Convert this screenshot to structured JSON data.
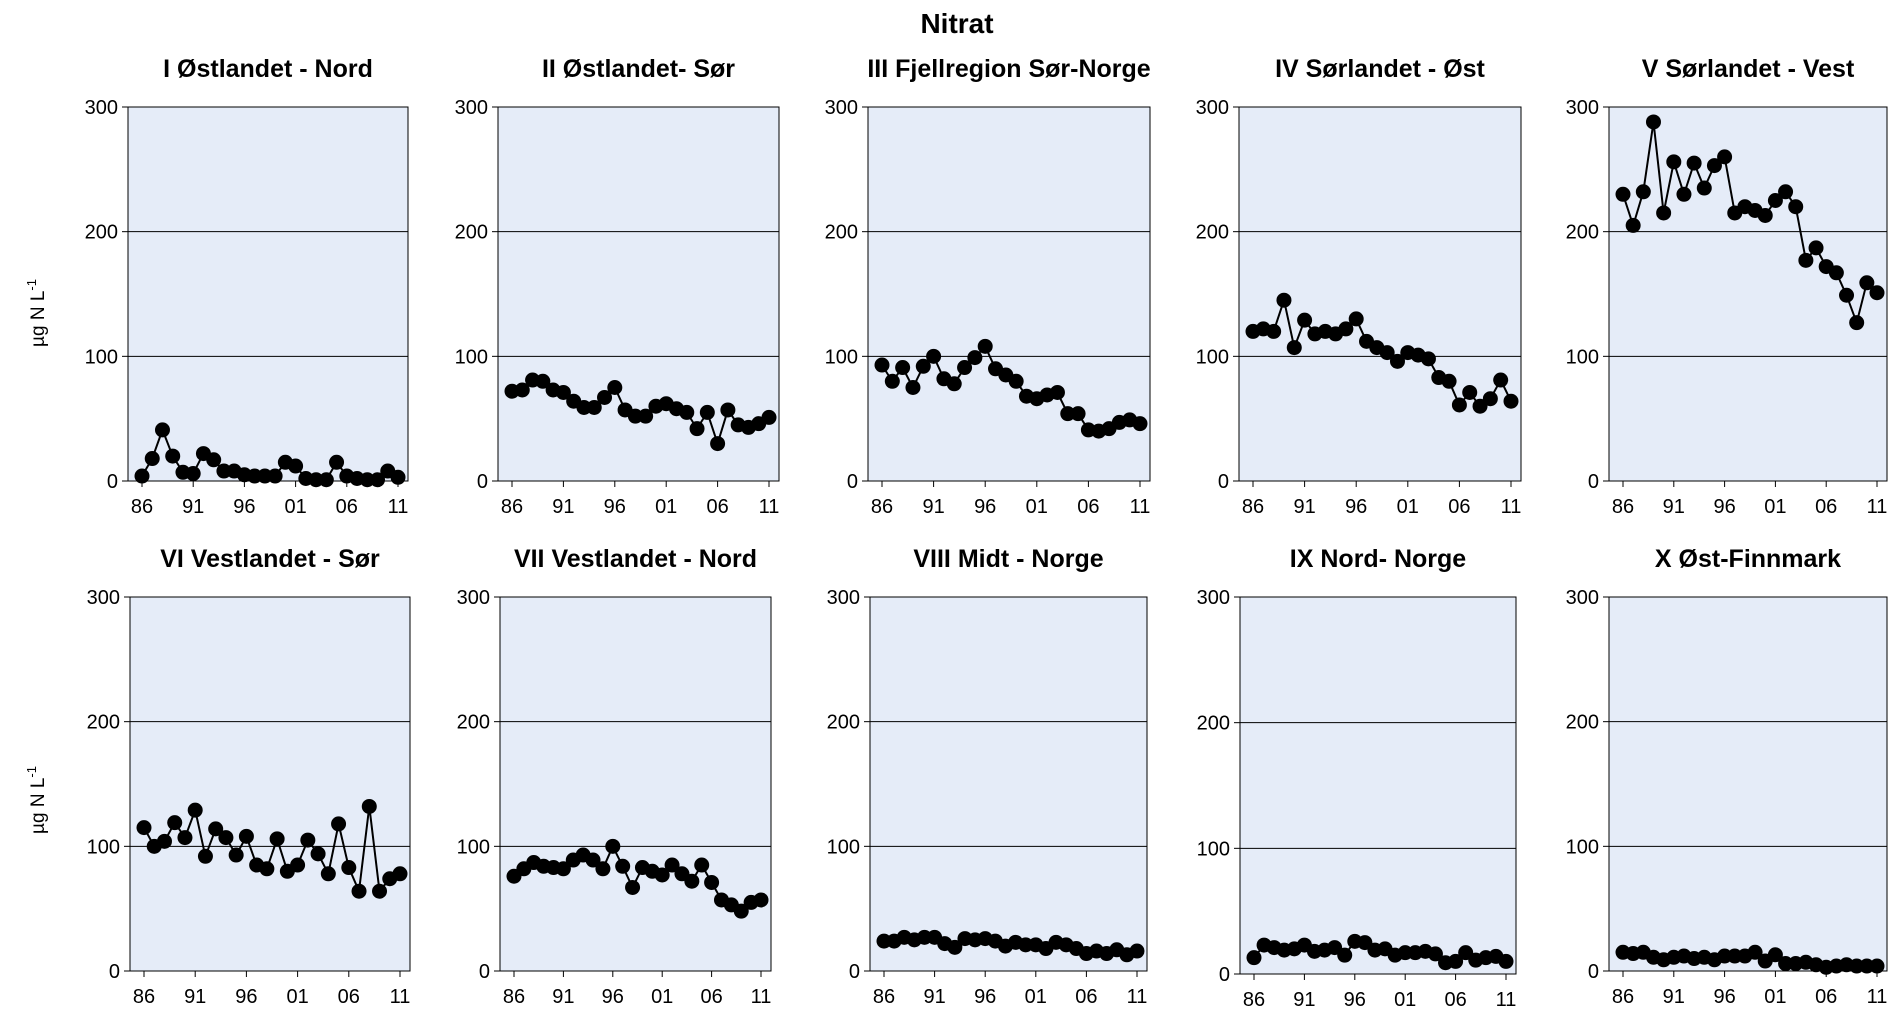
{
  "title": "Nitrat",
  "ylabel": {
    "base": "µg N L",
    "superscript": "-1"
  },
  "chart_data": [
    {
      "type": "line",
      "title": "I Østlandet - Nord",
      "ylim": [
        0,
        300
      ],
      "yticks": [
        0,
        100,
        200,
        300
      ],
      "xticks": [
        "86",
        "91",
        "96",
        "01",
        "06",
        "11"
      ],
      "x": [
        1986,
        1987,
        1988,
        1989,
        1990,
        1991,
        1992,
        1993,
        1994,
        1995,
        1996,
        1997,
        1998,
        1999,
        2000,
        2001,
        2002,
        2003,
        2004,
        2005,
        2006,
        2007,
        2008,
        2009,
        2010,
        2011
      ],
      "values": [
        4,
        18,
        41,
        20,
        7,
        6,
        22,
        17,
        8,
        8,
        5,
        4,
        4,
        4,
        15,
        12,
        2,
        1,
        1,
        15,
        4,
        2,
        1,
        1,
        8,
        3
      ]
    },
    {
      "type": "line",
      "title": "II Østlandet- Sør",
      "ylim": [
        0,
        300
      ],
      "yticks": [
        0,
        100,
        200,
        300
      ],
      "xticks": [
        "86",
        "91",
        "96",
        "01",
        "06",
        "11"
      ],
      "x": [
        1986,
        1987,
        1988,
        1989,
        1990,
        1991,
        1992,
        1993,
        1994,
        1995,
        1996,
        1997,
        1998,
        1999,
        2000,
        2001,
        2002,
        2003,
        2004,
        2005,
        2006,
        2007,
        2008,
        2009,
        2010,
        2011
      ],
      "values": [
        72,
        73,
        81,
        80,
        73,
        71,
        64,
        59,
        59,
        67,
        75,
        57,
        52,
        52,
        60,
        62,
        58,
        55,
        42,
        55,
        30,
        57,
        45,
        43,
        46,
        51
      ]
    },
    {
      "type": "line",
      "title": "III Fjellregion Sør-Norge",
      "ylim": [
        0,
        300
      ],
      "yticks": [
        0,
        100,
        200,
        300
      ],
      "xticks": [
        "86",
        "91",
        "96",
        "01",
        "06",
        "11"
      ],
      "x": [
        1986,
        1987,
        1988,
        1989,
        1990,
        1991,
        1992,
        1993,
        1994,
        1995,
        1996,
        1997,
        1998,
        1999,
        2000,
        2001,
        2002,
        2003,
        2004,
        2005,
        2006,
        2007,
        2008,
        2009,
        2010,
        2011
      ],
      "values": [
        93,
        80,
        91,
        75,
        92,
        100,
        82,
        78,
        91,
        99,
        108,
        90,
        85,
        80,
        68,
        66,
        69,
        71,
        54,
        54,
        41,
        40,
        42,
        47,
        49,
        46
      ]
    },
    {
      "type": "line",
      "title": "IV Sørlandet - Øst",
      "ylim": [
        0,
        300
      ],
      "yticks": [
        0,
        100,
        200,
        300
      ],
      "xticks": [
        "86",
        "91",
        "96",
        "01",
        "06",
        "11"
      ],
      "x": [
        1986,
        1987,
        1988,
        1989,
        1990,
        1991,
        1992,
        1993,
        1994,
        1995,
        1996,
        1997,
        1998,
        1999,
        2000,
        2001,
        2002,
        2003,
        2004,
        2005,
        2006,
        2007,
        2008,
        2009,
        2010,
        2011
      ],
      "values": [
        120,
        122,
        120,
        145,
        107,
        129,
        118,
        120,
        118,
        122,
        130,
        112,
        107,
        103,
        96,
        103,
        101,
        98,
        83,
        80,
        61,
        71,
        60,
        66,
        81,
        64
      ]
    },
    {
      "type": "line",
      "title": "V Sørlandet - Vest",
      "ylim": [
        0,
        300
      ],
      "yticks": [
        0,
        100,
        200,
        300
      ],
      "xticks": [
        "86",
        "91",
        "96",
        "01",
        "06",
        "11"
      ],
      "x": [
        1986,
        1987,
        1988,
        1989,
        1990,
        1991,
        1992,
        1993,
        1994,
        1995,
        1996,
        1997,
        1998,
        1999,
        2000,
        2001,
        2002,
        2003,
        2004,
        2005,
        2006,
        2007,
        2008,
        2009,
        2010,
        2011
      ],
      "values": [
        230,
        205,
        232,
        288,
        215,
        256,
        230,
        255,
        235,
        253,
        260,
        215,
        220,
        217,
        213,
        225,
        232,
        220,
        177,
        187,
        172,
        167,
        149,
        127,
        159,
        151
      ]
    },
    {
      "type": "line",
      "title": "VI Vestlandet - Sør",
      "ylim": [
        0,
        300
      ],
      "yticks": [
        0,
        100,
        200,
        300
      ],
      "xticks": [
        "86",
        "91",
        "96",
        "01",
        "06",
        "11"
      ],
      "x": [
        1986,
        1987,
        1988,
        1989,
        1990,
        1991,
        1992,
        1993,
        1994,
        1995,
        1996,
        1997,
        1998,
        1999,
        2000,
        2001,
        2002,
        2003,
        2004,
        2005,
        2006,
        2007,
        2008,
        2009,
        2010,
        2011
      ],
      "values": [
        115,
        100,
        104,
        119,
        107,
        129,
        92,
        114,
        107,
        93,
        108,
        85,
        82,
        106,
        80,
        85,
        105,
        94,
        78,
        118,
        83,
        64,
        132,
        64,
        74,
        78
      ]
    },
    {
      "type": "line",
      "title": "VII Vestlandet - Nord",
      "ylim": [
        0,
        300
      ],
      "yticks": [
        0,
        100,
        200,
        300
      ],
      "xticks": [
        "86",
        "91",
        "96",
        "01",
        "06",
        "11"
      ],
      "x": [
        1986,
        1987,
        1988,
        1989,
        1990,
        1991,
        1992,
        1993,
        1994,
        1995,
        1996,
        1997,
        1998,
        1999,
        2000,
        2001,
        2002,
        2003,
        2004,
        2005,
        2006,
        2007,
        2008,
        2009,
        2010,
        2011
      ],
      "values": [
        76,
        82,
        87,
        84,
        83,
        82,
        89,
        93,
        89,
        82,
        100,
        84,
        67,
        83,
        80,
        77,
        85,
        78,
        72,
        85,
        71,
        57,
        53,
        48,
        55,
        57
      ]
    },
    {
      "type": "line",
      "title": "VIII Midt - Norge",
      "ylim": [
        0,
        300
      ],
      "yticks": [
        0,
        100,
        200,
        300
      ],
      "xticks": [
        "86",
        "91",
        "96",
        "01",
        "06",
        "11"
      ],
      "x": [
        1986,
        1987,
        1988,
        1989,
        1990,
        1991,
        1992,
        1993,
        1994,
        1995,
        1996,
        1997,
        1998,
        1999,
        2000,
        2001,
        2002,
        2003,
        2004,
        2005,
        2006,
        2007,
        2008,
        2009,
        2010,
        2011
      ],
      "values": [
        24,
        24,
        27,
        25,
        27,
        27,
        22,
        19,
        26,
        25,
        26,
        24,
        20,
        23,
        21,
        21,
        18,
        23,
        21,
        18,
        14,
        16,
        14,
        17,
        13,
        16
      ]
    },
    {
      "type": "line",
      "title": "IX Nord- Norge",
      "ylim": [
        0,
        300
      ],
      "yticks": [
        0,
        100,
        200,
        300
      ],
      "xticks": [
        "86",
        "91",
        "96",
        "01",
        "06",
        "11"
      ],
      "x": [
        1986,
        1987,
        1988,
        1989,
        1990,
        1991,
        1992,
        1993,
        1994,
        1995,
        1996,
        1997,
        1998,
        1999,
        2000,
        2001,
        2002,
        2003,
        2004,
        2005,
        2006,
        2007,
        2008,
        2009,
        2010,
        2011
      ],
      "values": [
        13,
        23,
        21,
        19,
        20,
        23,
        18,
        19,
        21,
        15,
        26,
        25,
        19,
        20,
        15,
        17,
        17,
        18,
        16,
        9,
        10,
        17,
        11,
        13,
        14,
        10
      ]
    },
    {
      "type": "line",
      "title": "X Øst-Finnmark",
      "ylim": [
        0,
        300
      ],
      "yticks": [
        0,
        100,
        200,
        300
      ],
      "xticks": [
        "86",
        "91",
        "96",
        "01",
        "06",
        "11"
      ],
      "x": [
        1986,
        1987,
        1988,
        1989,
        1990,
        1991,
        1992,
        1993,
        1994,
        1995,
        1996,
        1997,
        1998,
        1999,
        2000,
        2001,
        2002,
        2003,
        2004,
        2005,
        2006,
        2007,
        2008,
        2009,
        2010,
        2011
      ],
      "values": [
        15,
        14,
        15,
        11,
        9,
        11,
        12,
        10,
        11,
        9,
        12,
        12,
        12,
        15,
        8,
        13,
        6,
        6,
        7,
        5,
        3,
        4,
        5,
        4,
        4,
        4
      ]
    }
  ]
}
